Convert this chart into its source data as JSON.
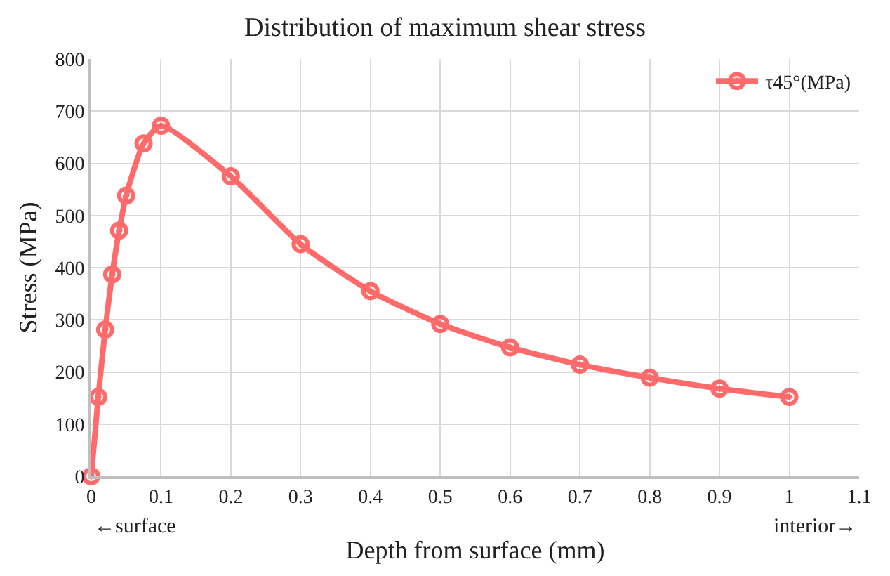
{
  "chart_data": {
    "type": "line",
    "title": "Distribution of maximum shear stress",
    "xlabel": "Depth from surface (mm)",
    "ylabel": "Stress (MPa)",
    "x": [
      0,
      0.01,
      0.02,
      0.03,
      0.04,
      0.05,
      0.075,
      0.1,
      0.2,
      0.3,
      0.4,
      0.5,
      0.6,
      0.7,
      0.8,
      0.9,
      1.0
    ],
    "series": [
      {
        "name": "τ45°(MPa)",
        "color": "#ff5a5a",
        "values": [
          0,
          152,
          281,
          387,
          471,
          538,
          638,
          672,
          575,
          445,
          355,
          292,
          247,
          214,
          189,
          168,
          152
        ]
      }
    ],
    "xlim": [
      0,
      1.1
    ],
    "xticks": [
      0,
      0.1,
      0.2,
      0.3,
      0.4,
      0.5,
      0.6,
      0.7,
      0.8,
      0.9,
      1,
      1.1
    ],
    "ylim": [
      0,
      800
    ],
    "yticks": [
      0,
      100,
      200,
      300,
      400,
      500,
      600,
      700,
      800
    ],
    "grid": true,
    "legend": "top right",
    "marker": "circle",
    "line_style": "solid",
    "annotations": [
      "←surface",
      "interior→"
    ]
  }
}
